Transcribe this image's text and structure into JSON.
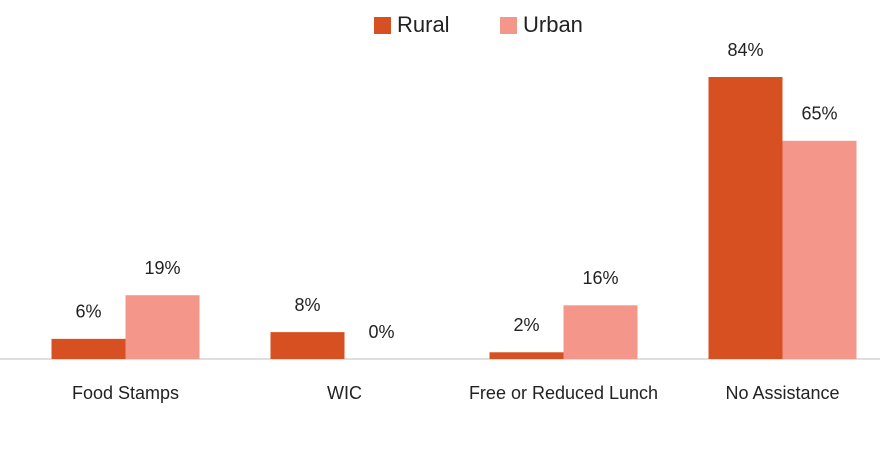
{
  "chart_data": {
    "type": "bar",
    "categories": [
      "Food Stamps",
      "WIC",
      "Free or Reduced Lunch",
      "No Assistance"
    ],
    "series": [
      {
        "name": "Rural",
        "color": "#d65022",
        "values": [
          6,
          8,
          2,
          84
        ],
        "value_labels": [
          "6%",
          "8%",
          "2%",
          "84%"
        ]
      },
      {
        "name": "Urban",
        "color": "#f4978a",
        "values": [
          19,
          0,
          16,
          65
        ],
        "value_labels": [
          "19%",
          "0%",
          "16%",
          "65%"
        ]
      }
    ],
    "legend": "top"
  }
}
